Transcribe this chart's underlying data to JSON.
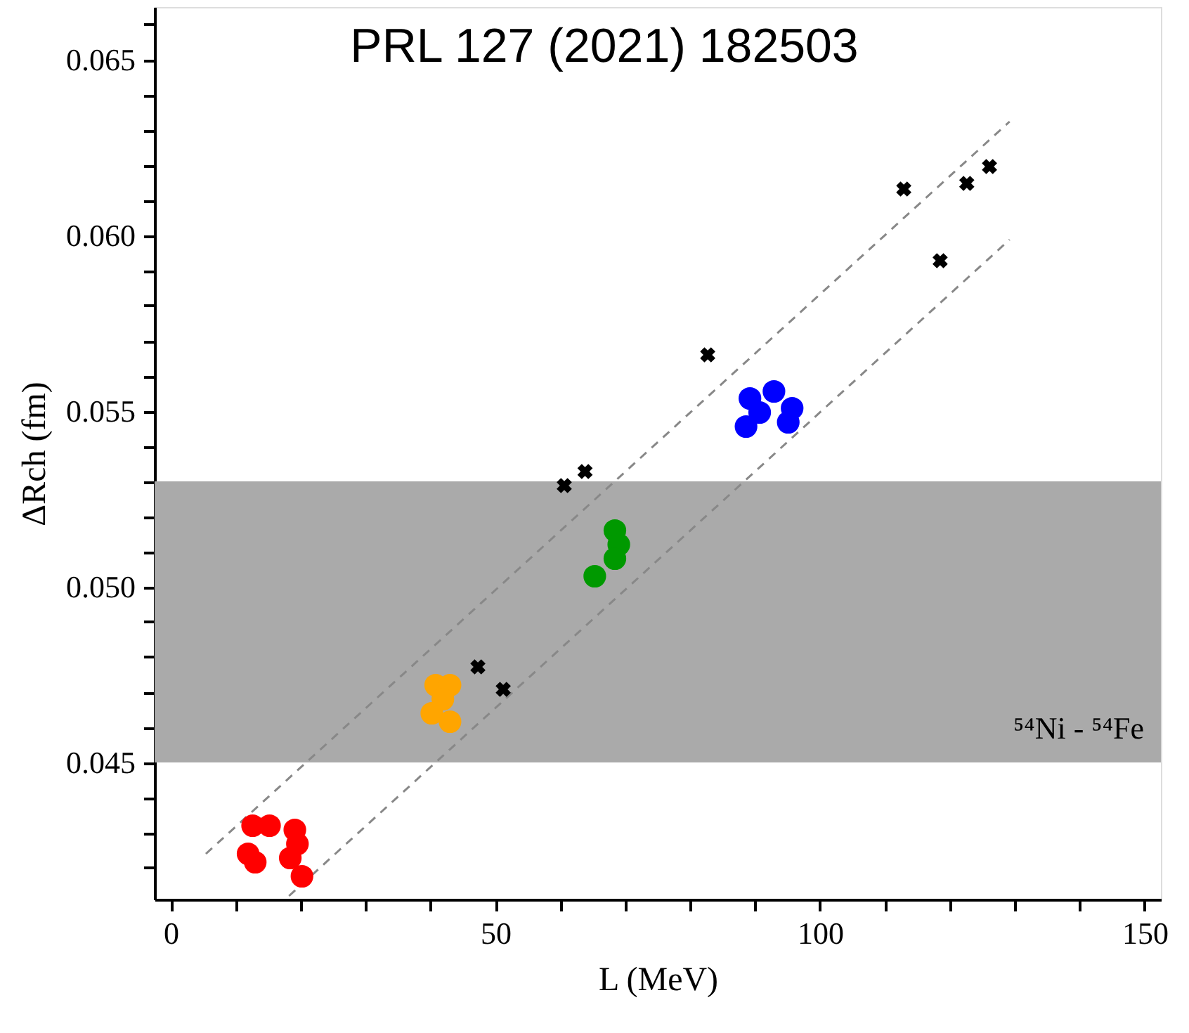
{
  "chart_data": {
    "type": "scatter",
    "xlabel": "L (MeV)",
    "ylabel": "ΔRch (fm)",
    "annotations": [
      "PRL 127 (2021) 182503"
    ],
    "xlim": [
      -2.5,
      152.5
    ],
    "ylim": [
      0.0411,
      0.0665
    ],
    "xticks": [
      0,
      {
        "value": 10,
        "label": null
      },
      {
        "value": 20,
        "label": null
      },
      {
        "value": 30,
        "label": null
      },
      {
        "value": 40,
        "label": null
      },
      50,
      {
        "value": 60,
        "label": null
      },
      {
        "value": 70,
        "label": null
      },
      {
        "value": 80,
        "label": null
      },
      {
        "value": 90,
        "label": null
      },
      100,
      {
        "value": 110,
        "label": null
      },
      {
        "value": 120,
        "label": null
      },
      {
        "value": 130,
        "label": null
      },
      {
        "value": 140,
        "label": null
      },
      150
    ],
    "yticks": [
      {
        "value": 0.042,
        "label": null
      },
      {
        "value": 0.043,
        "label": null
      },
      {
        "value": 0.044,
        "label": null
      },
      {
        "value": 0.045,
        "label": "0.045"
      },
      {
        "value": 0.046,
        "label": null
      },
      {
        "value": 0.047,
        "label": null
      },
      {
        "value": 0.048,
        "label": null
      },
      {
        "value": 0.049,
        "label": null
      },
      {
        "value": 0.05,
        "label": "0.050"
      },
      {
        "value": 0.051,
        "label": null
      },
      {
        "value": 0.052,
        "label": null
      },
      {
        "value": 0.053,
        "label": null
      },
      {
        "value": 0.054,
        "label": null
      },
      {
        "value": 0.055,
        "label": "0.055"
      },
      {
        "value": 0.056,
        "label": null
      },
      {
        "value": 0.057,
        "label": null
      },
      {
        "value": 0.058,
        "label": null
      },
      {
        "value": 0.059,
        "label": null
      },
      {
        "value": 0.06,
        "label": "0.060"
      },
      {
        "value": 0.061,
        "label": null
      },
      {
        "value": 0.062,
        "label": null
      },
      {
        "value": 0.063,
        "label": null
      },
      {
        "value": 0.064,
        "label": null
      },
      {
        "value": 0.065,
        "label": "0.065"
      },
      {
        "value": 0.066,
        "label": null
      }
    ],
    "grid": false,
    "bands": [
      {
        "axis": "y",
        "from": 0.045,
        "to": 0.053,
        "label": "⁵⁴Ni - ⁵⁴Fe",
        "color": "#aaaaaa"
      }
    ],
    "series": [
      {
        "type": "line",
        "line_style": "dashed",
        "color": "#888888",
        "x": [
          5.4,
          129.2
        ],
        "values": [
          0.0424,
          0.06324
        ]
      },
      {
        "type": "line",
        "line_style": "dashed",
        "color": "#888888",
        "x": [
          18.2,
          129.2
        ],
        "values": [
          0.0412,
          0.05988
        ]
      },
      {
        "marker": "circle",
        "color": "#ff0000",
        "x": [
          12.6,
          15.2,
          11.9,
          13.0,
          19.1,
          19.5,
          18.4,
          20.2
        ],
        "values": [
          0.0432,
          0.0432,
          0.0424,
          0.04216,
          0.04308,
          0.04268,
          0.04228,
          0.04176
        ]
      },
      {
        "marker": "circle",
        "color": "#ffa500",
        "x": [
          40.8,
          43.0,
          40.2,
          43.0,
          41.9
        ],
        "values": [
          0.0472,
          0.0472,
          0.0464,
          0.04616,
          0.0468
        ]
      },
      {
        "marker": "circle",
        "color": "#009900",
        "x": [
          68.4,
          69.0,
          66.9,
          65.3,
          68.4
        ],
        "values": [
          0.0516,
          0.0512,
          null,
          0.0503,
          0.0508
        ]
      },
      {
        "marker": "circle",
        "color": "#0000ff",
        "x": [
          89.2,
          92.9,
          95.7,
          88.6,
          95.1,
          90.7
        ],
        "values": [
          0.05536,
          0.05556,
          0.05508,
          0.05456,
          0.05468,
          0.05496
        ]
      },
      {
        "marker": "cross",
        "color": "#000000",
        "x": [
          47.3,
          51.2,
          60.6,
          63.8,
          82.7,
          112.9,
          118.5,
          122.6,
          126.1
        ],
        "values": [
          0.04772,
          0.04708,
          0.05288,
          0.05328,
          0.0566,
          0.06132,
          0.05928,
          0.06148,
          0.06196
        ]
      }
    ]
  }
}
